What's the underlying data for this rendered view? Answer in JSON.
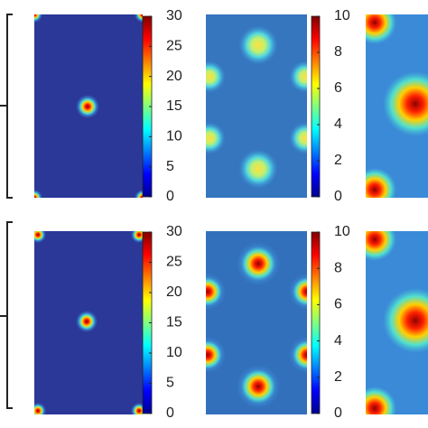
{
  "chart_data": [
    {
      "type": "heatmap",
      "clim": [
        0,
        30
      ],
      "cticks": [
        0,
        5,
        10,
        15,
        20,
        25,
        30
      ]
    },
    {
      "type": "heatmap",
      "clim": [
        0,
        10
      ],
      "cticks": [
        0,
        2,
        4,
        6,
        8,
        10
      ]
    },
    {
      "type": "heatmap",
      "clim": [
        0,
        30
      ],
      "cticks": [
        0,
        5,
        10,
        15,
        20,
        25,
        30
      ]
    },
    {
      "type": "heatmap",
      "clim": [
        0,
        10
      ],
      "cticks": [
        0,
        2,
        4,
        6,
        8,
        10
      ]
    }
  ]
}
